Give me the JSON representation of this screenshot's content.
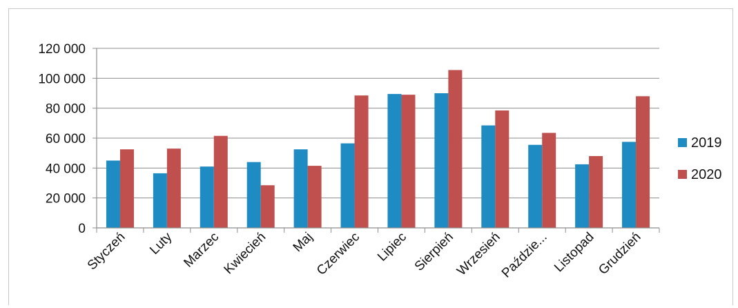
{
  "chart_data": {
    "type": "bar",
    "categories": [
      "Styczeń",
      "Luty",
      "Marzec",
      "Kwiecień",
      "Maj",
      "Czerwiec",
      "Lipiec",
      "Sierpień",
      "Wrzesień",
      "Paździe...",
      "Listopad",
      "Grudzień"
    ],
    "series": [
      {
        "name": "2019",
        "color": "#1e8bc3",
        "values": [
          45000,
          36500,
          41000,
          44000,
          52500,
          56500,
          89500,
          90000,
          68500,
          55500,
          42500,
          57500
        ]
      },
      {
        "name": "2020",
        "color": "#c0504d",
        "values": [
          52500,
          53000,
          61500,
          28500,
          41500,
          88500,
          89000,
          105500,
          78500,
          63500,
          48000,
          88000
        ]
      }
    ],
    "y_ticks": [
      "0",
      "20 000",
      "40 000",
      "60 000",
      "80 000",
      "100 000",
      "120 000"
    ],
    "ylim": [
      0,
      120000
    ],
    "title": "",
    "xlabel": "",
    "ylabel": "",
    "grid": true,
    "legend_position": "right"
  }
}
